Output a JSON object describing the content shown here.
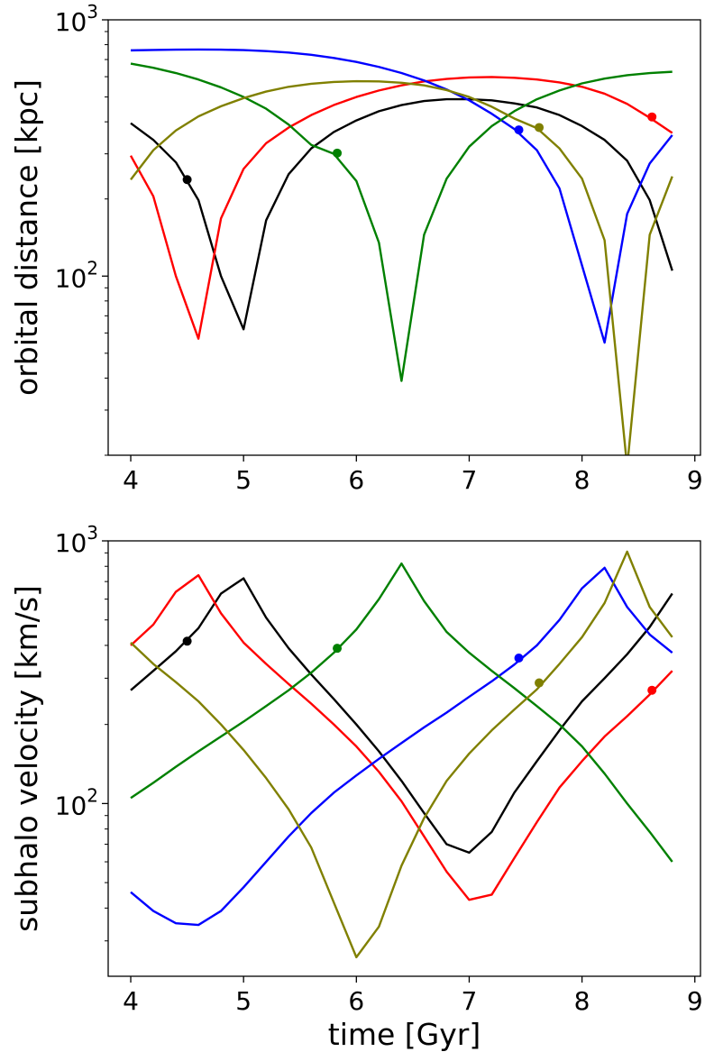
{
  "chart_data": [
    {
      "type": "line",
      "yscale": "log",
      "xlabel": "",
      "ylabel": "orbital distance [kpc]",
      "xlim": [
        3.8,
        9.05
      ],
      "ylim": [
        20,
        1000
      ],
      "xticks": [
        4,
        5,
        6,
        7,
        8,
        9
      ],
      "xtick_labels": [
        "4",
        "5",
        "6",
        "7",
        "8",
        "9"
      ],
      "yticks": [
        100,
        1000
      ],
      "ytick_labels": [
        {
          "base": "10",
          "exp": "2"
        },
        {
          "base": "10",
          "exp": "3"
        }
      ],
      "yminor_ticks": [
        20,
        30,
        40,
        50,
        60,
        70,
        80,
        90,
        200,
        300,
        400,
        500,
        600,
        700,
        800,
        900
      ],
      "series": [
        {
          "name": "black",
          "color": "#000000",
          "x": [
            4.0,
            4.2,
            4.4,
            4.6,
            4.8,
            5.0,
            5.2,
            5.4,
            5.6,
            5.8,
            6.0,
            6.2,
            6.4,
            6.6,
            6.8,
            7.0,
            7.2,
            7.4,
            7.6,
            7.8,
            8.0,
            8.2,
            8.4,
            8.6,
            8.8
          ],
          "y": [
            395,
            340,
            278,
            198,
            100,
            62,
            165,
            250,
            315,
            365,
            405,
            440,
            465,
            482,
            490,
            490,
            485,
            472,
            455,
            425,
            385,
            340,
            282,
            198,
            105
          ],
          "marker": {
            "x": 4.5,
            "y": 238
          }
        },
        {
          "name": "red",
          "color": "#ff0000",
          "x": [
            4.0,
            4.2,
            4.4,
            4.6,
            4.8,
            5.0,
            5.2,
            5.4,
            5.6,
            5.8,
            6.0,
            6.2,
            6.4,
            6.6,
            6.8,
            7.0,
            7.2,
            7.4,
            7.6,
            7.8,
            8.0,
            8.2,
            8.4,
            8.6,
            8.8
          ],
          "y": [
            295,
            205,
            100,
            57,
            168,
            262,
            330,
            380,
            425,
            465,
            500,
            530,
            555,
            575,
            588,
            596,
            598,
            594,
            585,
            570,
            548,
            515,
            470,
            415,
            362
          ],
          "marker": {
            "x": 8.62,
            "y": 418
          }
        },
        {
          "name": "blue",
          "color": "#0000ff",
          "x": [
            4.0,
            4.2,
            4.4,
            4.6,
            4.8,
            5.0,
            5.2,
            5.4,
            5.6,
            5.8,
            6.0,
            6.2,
            6.4,
            6.6,
            6.8,
            7.0,
            7.2,
            7.4,
            7.6,
            7.8,
            8.0,
            8.2,
            8.4,
            8.6,
            8.8
          ],
          "y": [
            760,
            763,
            765,
            766,
            765,
            762,
            755,
            745,
            730,
            710,
            685,
            655,
            620,
            580,
            535,
            485,
            430,
            375,
            310,
            220,
            110,
            55,
            175,
            275,
            355
          ],
          "marker": {
            "x": 7.44,
            "y": 372
          }
        },
        {
          "name": "green",
          "color": "#008000",
          "x": [
            4.0,
            4.2,
            4.4,
            4.6,
            4.8,
            5.0,
            5.2,
            5.4,
            5.6,
            5.8,
            6.0,
            6.2,
            6.4,
            6.6,
            6.8,
            7.0,
            7.2,
            7.4,
            7.6,
            7.8,
            8.0,
            8.2,
            8.4,
            8.6,
            8.8
          ],
          "y": [
            675,
            650,
            620,
            585,
            545,
            500,
            450,
            390,
            325,
            300,
            235,
            135,
            39,
            145,
            240,
            320,
            385,
            440,
            490,
            530,
            565,
            590,
            608,
            620,
            627
          ],
          "marker": {
            "x": 5.83,
            "y": 302
          }
        },
        {
          "name": "olive",
          "color": "#808000",
          "x": [
            4.0,
            4.2,
            4.4,
            4.6,
            4.8,
            5.0,
            5.2,
            5.4,
            5.6,
            5.8,
            6.0,
            6.2,
            6.4,
            6.6,
            6.8,
            7.0,
            7.2,
            7.4,
            7.6,
            7.8,
            8.0,
            8.2,
            8.4,
            8.6,
            8.8
          ],
          "y": [
            238,
            310,
            370,
            420,
            460,
            495,
            525,
            548,
            563,
            572,
            576,
            575,
            568,
            555,
            532,
            500,
            458,
            412,
            378,
            315,
            240,
            138,
            18,
            145,
            245
          ],
          "marker": {
            "x": 7.62,
            "y": 380
          }
        }
      ]
    },
    {
      "type": "line",
      "yscale": "log",
      "xlabel": "time [Gyr]",
      "ylabel": "subhalo velocity [km/s]",
      "xlim": [
        3.8,
        9.05
      ],
      "ylim": [
        22,
        1000
      ],
      "xticks": [
        4,
        5,
        6,
        7,
        8,
        9
      ],
      "xtick_labels": [
        "4",
        "5",
        "6",
        "7",
        "8",
        "9"
      ],
      "yticks": [
        100,
        1000
      ],
      "ytick_labels": [
        {
          "base": "10",
          "exp": "2"
        },
        {
          "base": "10",
          "exp": "3"
        }
      ],
      "yminor_ticks": [
        30,
        40,
        50,
        60,
        70,
        80,
        90,
        200,
        300,
        400,
        500,
        600,
        700,
        800,
        900
      ],
      "series": [
        {
          "name": "black",
          "color": "#000000",
          "x": [
            4.0,
            4.2,
            4.4,
            4.6,
            4.8,
            5.0,
            5.2,
            5.4,
            5.6,
            5.8,
            6.0,
            6.2,
            6.4,
            6.6,
            6.8,
            7.0,
            7.2,
            7.4,
            7.6,
            7.8,
            8.0,
            8.2,
            8.4,
            8.6,
            8.8
          ],
          "y": [
            270,
            320,
            380,
            465,
            630,
            720,
            510,
            390,
            310,
            250,
            200,
            158,
            122,
            92,
            70,
            65,
            78,
            110,
            145,
            190,
            245,
            300,
            370,
            470,
            630
          ],
          "marker": {
            "x": 4.5,
            "y": 415
          }
        },
        {
          "name": "red",
          "color": "#ff0000",
          "x": [
            4.0,
            4.2,
            4.4,
            4.6,
            4.8,
            5.0,
            5.2,
            5.4,
            5.6,
            5.8,
            6.0,
            6.2,
            6.4,
            6.6,
            6.8,
            7.0,
            7.2,
            7.4,
            7.6,
            7.8,
            8.0,
            8.2,
            8.4,
            8.6,
            8.8
          ],
          "y": [
            400,
            480,
            640,
            740,
            530,
            410,
            340,
            285,
            240,
            200,
            165,
            132,
            102,
            75,
            55,
            43,
            45,
            62,
            85,
            115,
            145,
            180,
            215,
            260,
            320
          ],
          "marker": {
            "x": 8.62,
            "y": 270
          }
        },
        {
          "name": "blue",
          "color": "#0000ff",
          "x": [
            4.0,
            4.2,
            4.4,
            4.6,
            4.8,
            5.0,
            5.2,
            5.4,
            5.6,
            5.8,
            6.0,
            6.2,
            6.4,
            6.6,
            6.8,
            7.0,
            7.2,
            7.4,
            7.6,
            7.8,
            8.0,
            8.2,
            8.4,
            8.6,
            8.8
          ],
          "y": [
            46,
            39,
            35,
            34.5,
            39,
            48,
            60,
            75,
            92,
            110,
            128,
            148,
            170,
            195,
            222,
            255,
            292,
            338,
            400,
            500,
            660,
            790,
            560,
            440,
            375
          ],
          "marker": {
            "x": 7.44,
            "y": 358
          }
        },
        {
          "name": "green",
          "color": "#008000",
          "x": [
            4.0,
            4.2,
            4.4,
            4.6,
            4.8,
            5.0,
            5.2,
            5.4,
            5.6,
            5.8,
            6.0,
            6.2,
            6.4,
            6.6,
            6.8,
            7.0,
            7.2,
            7.4,
            7.6,
            7.8,
            8.0,
            8.2,
            8.4,
            8.6,
            8.8
          ],
          "y": [
            105,
            120,
            138,
            158,
            180,
            205,
            235,
            270,
            315,
            375,
            460,
            600,
            820,
            590,
            450,
            375,
            320,
            275,
            235,
            200,
            165,
            130,
            100,
            78,
            60
          ],
          "marker": {
            "x": 5.83,
            "y": 390
          }
        },
        {
          "name": "olive",
          "color": "#808000",
          "x": [
            4.0,
            4.2,
            4.4,
            4.6,
            4.8,
            5.0,
            5.2,
            5.4,
            5.6,
            5.8,
            6.0,
            6.2,
            6.4,
            6.6,
            6.8,
            7.0,
            7.2,
            7.4,
            7.6,
            7.8,
            8.0,
            8.2,
            8.4,
            8.6,
            8.8
          ],
          "y": [
            410,
            340,
            290,
            245,
            200,
            160,
            125,
            95,
            68,
            42,
            26,
            34,
            58,
            88,
            122,
            155,
            190,
            228,
            272,
            340,
            430,
            580,
            910,
            560,
            430
          ],
          "marker": {
            "x": 7.62,
            "y": 288
          }
        }
      ]
    }
  ]
}
